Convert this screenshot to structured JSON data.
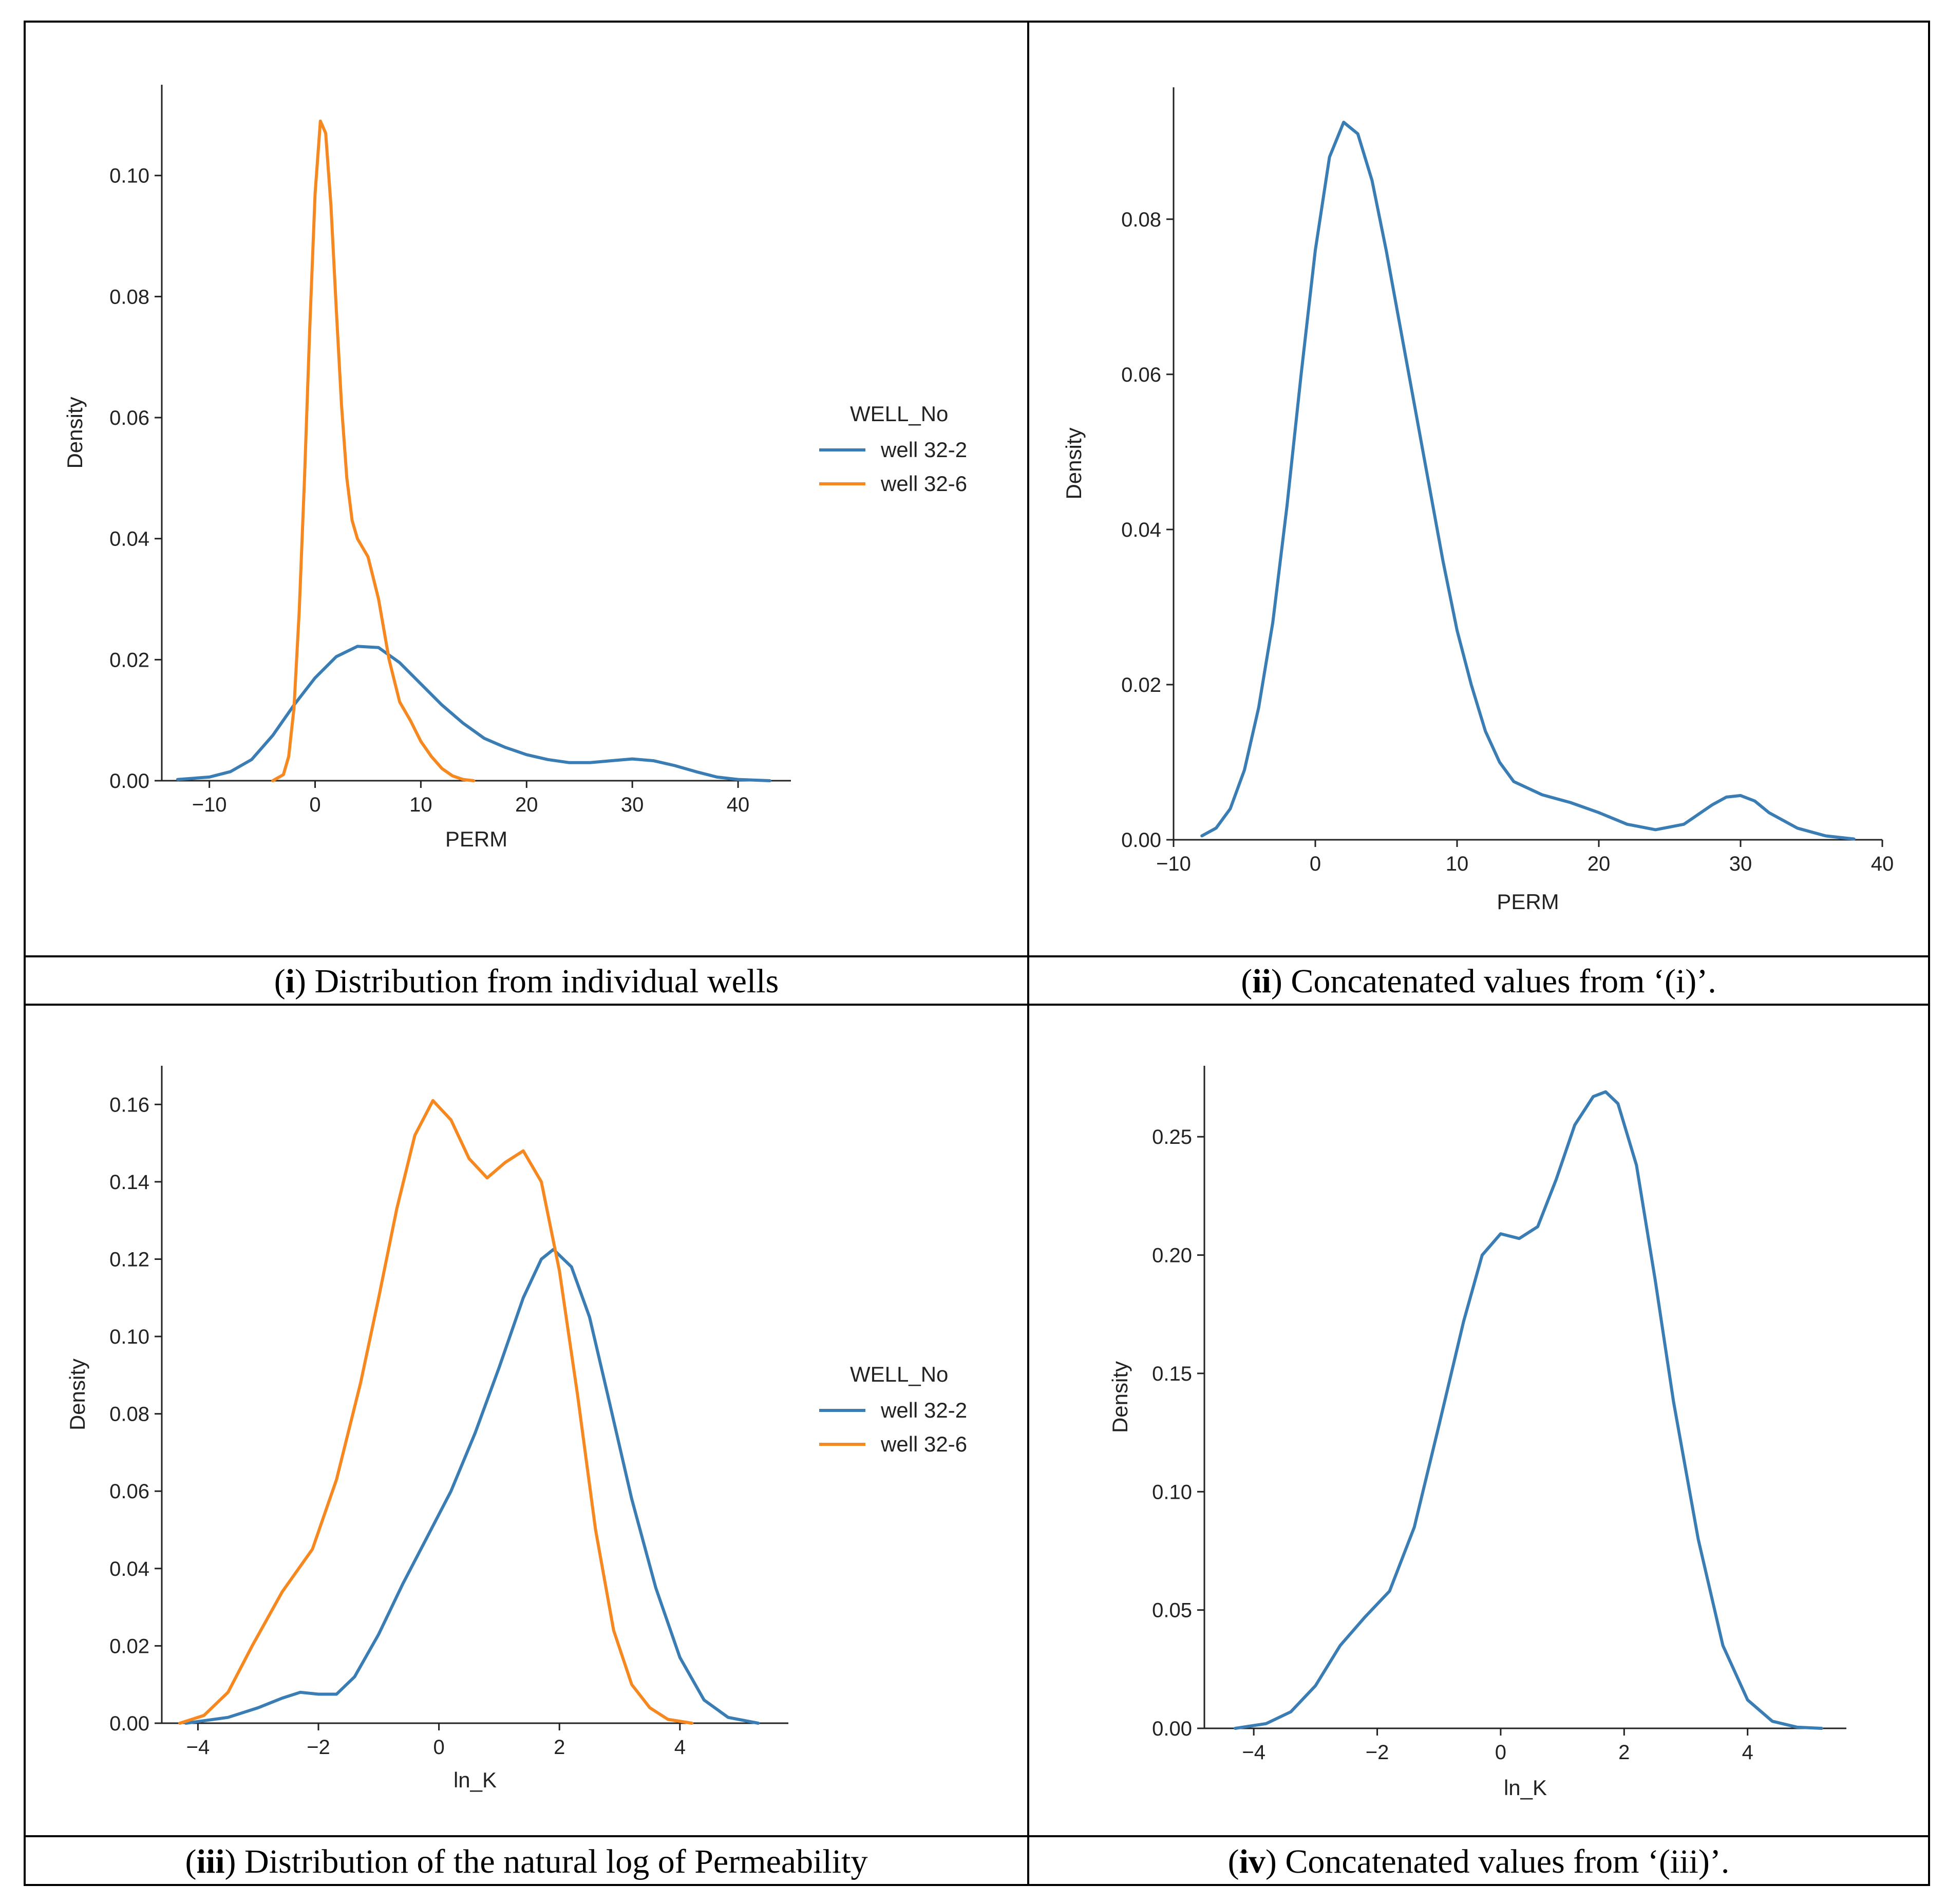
{
  "colors": {
    "well_32_2": "#3a7db4",
    "well_32_6": "#f7881f",
    "grid_lines": "#000000"
  },
  "captions": [
    {
      "bold": "i",
      "text": ") Distribution from individual wells"
    },
    {
      "bold": "ii",
      "text": ") Concatenated values from ‘(i)’."
    },
    {
      "bold": "iii",
      "text": ") Distribution of the natural log of Permeability"
    },
    {
      "bold": "iv",
      "text": ") Concatenated values from ‘(iii)’."
    }
  ],
  "chart_data": [
    {
      "type": "line",
      "title": "",
      "xlabel": "PERM",
      "ylabel": "Density",
      "xlim": [
        -14.5,
        45
      ],
      "ylim": [
        0,
        0.115
      ],
      "xticks": [
        -10,
        0,
        10,
        20,
        30,
        40
      ],
      "xtick_labels": [
        "−10",
        "0",
        "10",
        "20",
        "30",
        "40"
      ],
      "yticks": [
        0,
        0.02,
        0.04,
        0.06,
        0.08,
        0.1
      ],
      "ytick_labels": [
        "0.00",
        "0.02",
        "0.04",
        "0.06",
        "0.08",
        "0.10"
      ],
      "legend": {
        "title": "WELL_No",
        "position": "right"
      },
      "series": [
        {
          "name": "well 32-2",
          "color_key": "well_32_2",
          "x": [
            -13,
            -10,
            -8,
            -6,
            -4,
            -2,
            0,
            2,
            4,
            6,
            8,
            10,
            12,
            14,
            16,
            18,
            20,
            22,
            24,
            26,
            28,
            30,
            32,
            34,
            36,
            38,
            40,
            43
          ],
          "y": [
            0.0002,
            0.0006,
            0.0015,
            0.0035,
            0.0075,
            0.0125,
            0.017,
            0.0205,
            0.0222,
            0.022,
            0.0195,
            0.016,
            0.0125,
            0.0095,
            0.007,
            0.0055,
            0.0043,
            0.0035,
            0.003,
            0.003,
            0.0033,
            0.0036,
            0.0033,
            0.0025,
            0.0015,
            0.0006,
            0.0002,
            0.0
          ]
        },
        {
          "name": "well 32-6",
          "color_key": "well_32_6",
          "x": [
            -4,
            -3,
            -2.5,
            -2,
            -1.5,
            -1,
            -0.5,
            0,
            0.5,
            1,
            1.5,
            2,
            2.5,
            3,
            3.5,
            4,
            5,
            6,
            7,
            8,
            9,
            10,
            11,
            12,
            13,
            14,
            15
          ],
          "y": [
            0.0,
            0.001,
            0.004,
            0.012,
            0.028,
            0.05,
            0.075,
            0.097,
            0.109,
            0.107,
            0.095,
            0.078,
            0.062,
            0.05,
            0.043,
            0.04,
            0.037,
            0.03,
            0.02,
            0.013,
            0.01,
            0.0065,
            0.004,
            0.002,
            0.0008,
            0.0002,
            0.0
          ]
        }
      ]
    },
    {
      "type": "line",
      "title": "",
      "xlabel": "PERM",
      "ylabel": "Density",
      "xlim": [
        -10,
        40
      ],
      "ylim": [
        0,
        0.097
      ],
      "xticks": [
        -10,
        0,
        10,
        20,
        30,
        40
      ],
      "xtick_labels": [
        "−10",
        "0",
        "10",
        "20",
        "30",
        "40"
      ],
      "yticks": [
        0,
        0.02,
        0.04,
        0.06,
        0.08
      ],
      "ytick_labels": [
        "0.00",
        "0.02",
        "0.04",
        "0.06",
        "0.08"
      ],
      "series": [
        {
          "name": "PERM",
          "color_key": "well_32_2",
          "x": [
            -8,
            -7,
            -6,
            -5,
            -4,
            -3,
            -2,
            -1,
            0,
            1,
            2,
            3,
            4,
            5,
            6,
            7,
            8,
            9,
            10,
            11,
            12,
            13,
            14,
            16,
            18,
            20,
            22,
            24,
            26,
            28,
            29,
            30,
            31,
            32,
            34,
            36,
            38
          ],
          "y": [
            0.0005,
            0.0015,
            0.004,
            0.009,
            0.017,
            0.028,
            0.043,
            0.06,
            0.076,
            0.088,
            0.0925,
            0.091,
            0.085,
            0.076,
            0.066,
            0.056,
            0.046,
            0.036,
            0.027,
            0.02,
            0.014,
            0.01,
            0.0075,
            0.0058,
            0.0048,
            0.0035,
            0.002,
            0.0013,
            0.002,
            0.0045,
            0.0055,
            0.0057,
            0.005,
            0.0035,
            0.0015,
            0.0005,
            0.0001
          ]
        }
      ]
    },
    {
      "type": "line",
      "title": "",
      "xlabel": "ln_K",
      "ylabel": "Density",
      "xlim": [
        -4.6,
        5.8
      ],
      "ylim": [
        0,
        0.17
      ],
      "xticks": [
        -4,
        -2,
        0,
        2,
        4
      ],
      "xtick_labels": [
        "−4",
        "−2",
        "0",
        "2",
        "4"
      ],
      "yticks": [
        0,
        0.02,
        0.04,
        0.06,
        0.08,
        0.1,
        0.12,
        0.14,
        0.16
      ],
      "ytick_labels": [
        "0.00",
        "0.02",
        "0.04",
        "0.06",
        "0.08",
        "0.10",
        "0.12",
        "0.14",
        "0.16"
      ],
      "legend": {
        "title": "WELL_No",
        "position": "right"
      },
      "series": [
        {
          "name": "well 32-2",
          "color_key": "well_32_2",
          "x": [
            -4.2,
            -3.5,
            -3.0,
            -2.6,
            -2.3,
            -2.0,
            -1.7,
            -1.4,
            -1.0,
            -0.6,
            -0.2,
            0.2,
            0.6,
            1.0,
            1.4,
            1.7,
            1.9,
            2.2,
            2.5,
            2.8,
            3.2,
            3.6,
            4.0,
            4.4,
            4.8,
            5.3
          ],
          "y": [
            0.0,
            0.0015,
            0.004,
            0.0065,
            0.008,
            0.0075,
            0.0075,
            0.012,
            0.023,
            0.036,
            0.048,
            0.06,
            0.075,
            0.092,
            0.11,
            0.12,
            0.1225,
            0.118,
            0.105,
            0.085,
            0.058,
            0.035,
            0.017,
            0.006,
            0.0015,
            0.0
          ]
        },
        {
          "name": "well 32-6",
          "color_key": "well_32_6",
          "x": [
            -4.3,
            -3.9,
            -3.5,
            -3.1,
            -2.6,
            -2.1,
            -1.7,
            -1.3,
            -1.0,
            -0.7,
            -0.4,
            -0.1,
            0.2,
            0.5,
            0.8,
            1.1,
            1.4,
            1.7,
            2.0,
            2.3,
            2.6,
            2.9,
            3.2,
            3.5,
            3.8,
            4.2
          ],
          "y": [
            0.0,
            0.002,
            0.008,
            0.02,
            0.034,
            0.045,
            0.063,
            0.088,
            0.11,
            0.133,
            0.152,
            0.161,
            0.156,
            0.146,
            0.141,
            0.145,
            0.148,
            0.14,
            0.117,
            0.085,
            0.05,
            0.024,
            0.01,
            0.004,
            0.001,
            0.0
          ]
        }
      ]
    },
    {
      "type": "line",
      "title": "",
      "xlabel": "ln_K",
      "ylabel": "Density",
      "xlim": [
        -4.8,
        5.6
      ],
      "ylim": [
        0,
        0.28
      ],
      "xticks": [
        -4,
        -2,
        0,
        2,
        4
      ],
      "xtick_labels": [
        "−4",
        "−2",
        "0",
        "2",
        "4"
      ],
      "yticks": [
        0,
        0.05,
        0.1,
        0.15,
        0.2,
        0.25
      ],
      "ytick_labels": [
        "0.00",
        "0.05",
        "0.10",
        "0.15",
        "0.20",
        "0.25"
      ],
      "series": [
        {
          "name": "ln_K",
          "color_key": "well_32_2",
          "x": [
            -4.3,
            -3.8,
            -3.4,
            -3.0,
            -2.6,
            -2.2,
            -1.8,
            -1.4,
            -1.0,
            -0.6,
            -0.3,
            0.0,
            0.3,
            0.6,
            0.9,
            1.2,
            1.5,
            1.7,
            1.9,
            2.2,
            2.5,
            2.8,
            3.2,
            3.6,
            4.0,
            4.4,
            4.8,
            5.2
          ],
          "y": [
            0.0,
            0.002,
            0.007,
            0.018,
            0.035,
            0.047,
            0.058,
            0.085,
            0.128,
            0.172,
            0.2,
            0.209,
            0.207,
            0.212,
            0.232,
            0.255,
            0.267,
            0.269,
            0.264,
            0.238,
            0.19,
            0.138,
            0.08,
            0.035,
            0.012,
            0.003,
            0.0005,
            0.0
          ]
        }
      ]
    }
  ]
}
